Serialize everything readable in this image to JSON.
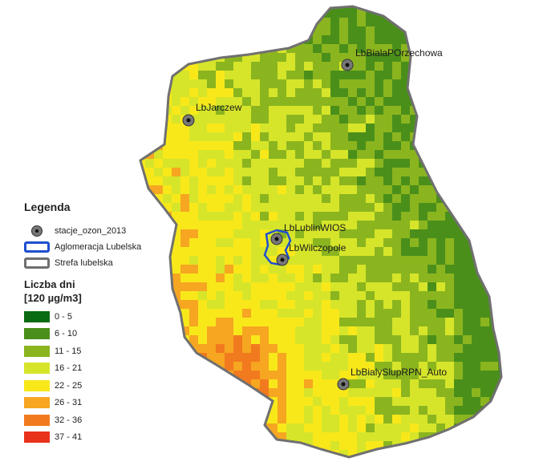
{
  "legend": {
    "title": "Legenda",
    "station_layer": "stacje_ozon_2013",
    "agglomeration_layer": "Aglomeracja Lubelska",
    "zone_layer": "Strefa lubelska",
    "classes_title_line1": "Liczba dni",
    "classes_title_line2": "[120 µg/m3]",
    "classes": [
      {
        "label": "0 - 5",
        "color": "#0a6b12"
      },
      {
        "label": "6 - 10",
        "color": "#4a8f1a"
      },
      {
        "label": "11 - 15",
        "color": "#8bb51f"
      },
      {
        "label": "16 - 21",
        "color": "#d6e52a"
      },
      {
        "label": "22 - 25",
        "color": "#f8e81a"
      },
      {
        "label": "26 - 31",
        "color": "#f6a621"
      },
      {
        "label": "32 - 36",
        "color": "#f27a1e"
      },
      {
        "label": "37 - 41",
        "color": "#e8321c"
      }
    ]
  },
  "colors": {
    "zone_outline": "#707070",
    "agglomeration_outline": "#1f4fd1",
    "station_marker": "#777777"
  },
  "stations": [
    {
      "name": "LbBialaPOrzechowa"
    },
    {
      "name": "LbJarczew"
    },
    {
      "name": "LbLublinWIOS"
    },
    {
      "name": "LbWilczopole"
    },
    {
      "name": "LbBialySlupRPN_Auto"
    }
  ]
}
